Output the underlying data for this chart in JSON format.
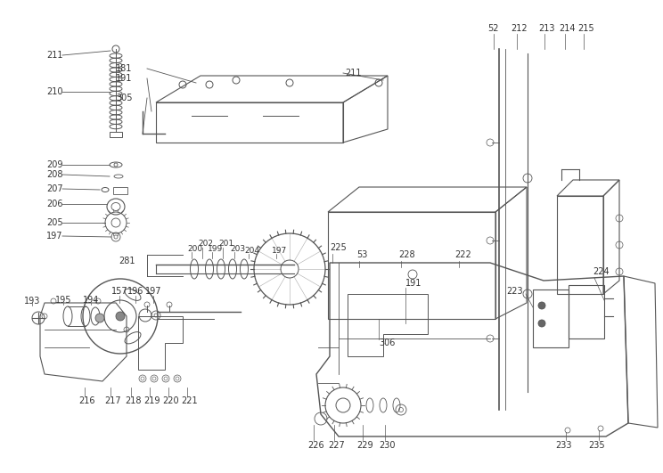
{
  "bg_color": "#ffffff",
  "lc": "#555555",
  "lc2": "#777777",
  "fig_w": 7.44,
  "fig_h": 5.31,
  "dpi": 100
}
